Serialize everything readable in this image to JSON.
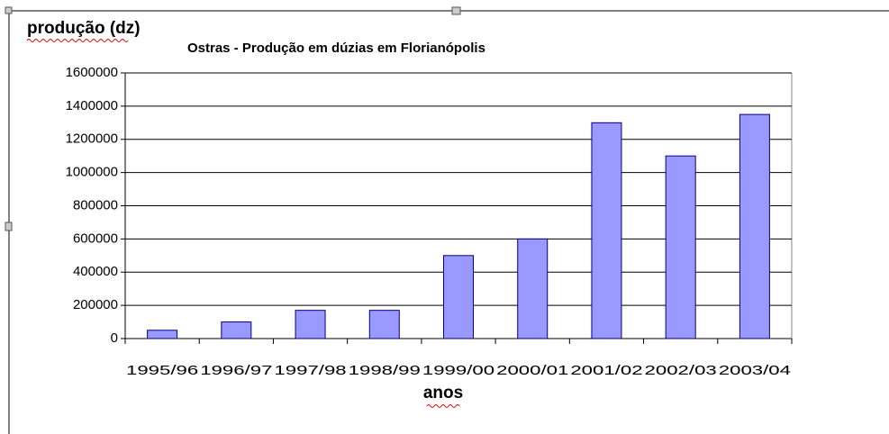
{
  "chart_data": {
    "type": "bar",
    "title": "Ostras - Produção em dúzias em Florianópolis",
    "y_label": "produção (dz)",
    "x_label": "anos",
    "categories": [
      "1995/96",
      "1996/97",
      "1997/98",
      "1998/99",
      "1999/00",
      "2000/01",
      "2001/02",
      "2002/03",
      "2003/04"
    ],
    "values": [
      50000,
      100000,
      170000,
      170000,
      500000,
      600000,
      1300000,
      1100000,
      1350000
    ],
    "color": "#9999ff",
    "ylim": [
      0,
      1600000
    ],
    "yticks": [
      0,
      200000,
      400000,
      600000,
      800000,
      1000000,
      1200000,
      1400000,
      1600000
    ],
    "grid": true
  }
}
